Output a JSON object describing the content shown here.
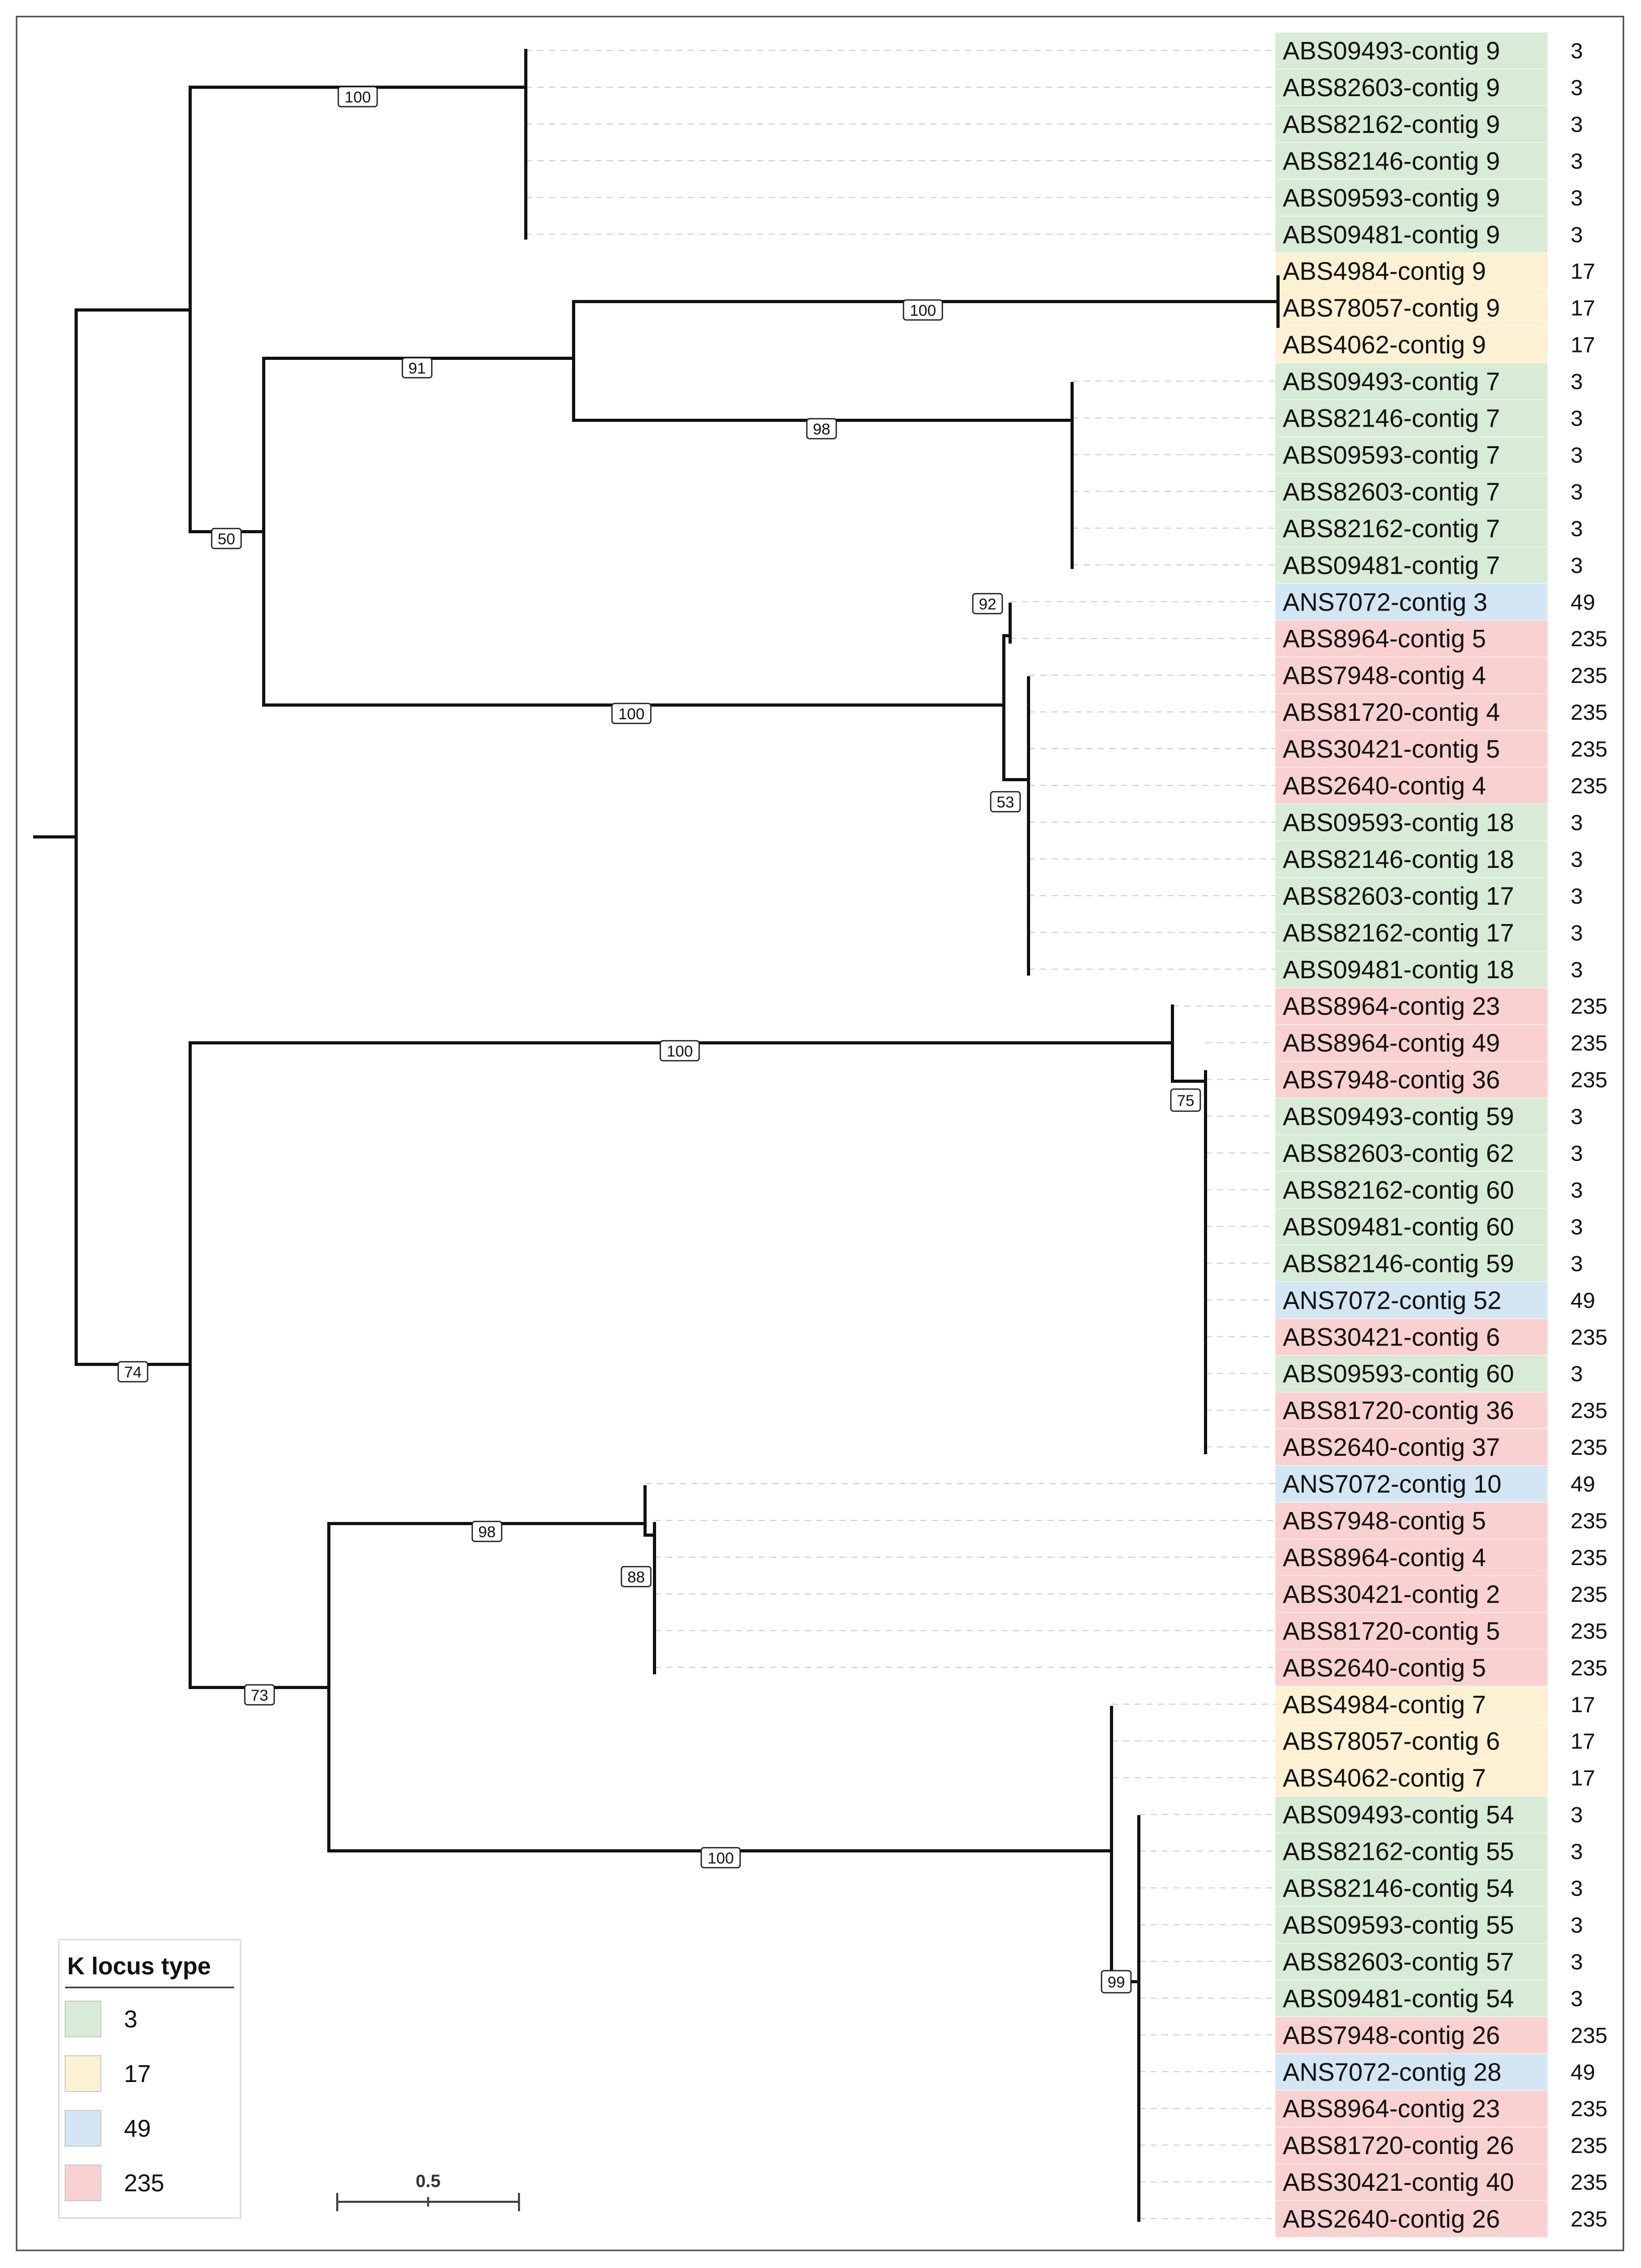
{
  "figure": {
    "title": "",
    "legend": {
      "title": "K locus type",
      "entries": [
        {
          "label": "3",
          "color": "#d7ebd6"
        },
        {
          "label": "17",
          "color": "#fcf1d2"
        },
        {
          "label": "49",
          "color": "#d3e6f3"
        },
        {
          "label": "235",
          "color": "#f9d1d1"
        }
      ]
    },
    "scale_bar": {
      "label": "0.5",
      "value": 0.5
    }
  },
  "colors": {
    "3": "#d7ebd6",
    "17": "#fcf1d2",
    "49": "#d3e6f3",
    "235": "#f9d1d1"
  },
  "tips": [
    {
      "label": "ABS09493-contig 9",
      "ktype": "3"
    },
    {
      "label": "ABS82603-contig 9",
      "ktype": "3"
    },
    {
      "label": "ABS82162-contig 9",
      "ktype": "3"
    },
    {
      "label": "ABS82146-contig 9",
      "ktype": "3"
    },
    {
      "label": "ABS09593-contig 9",
      "ktype": "3"
    },
    {
      "label": "ABS09481-contig 9",
      "ktype": "3"
    },
    {
      "label": "ABS4984-contig 9",
      "ktype": "17"
    },
    {
      "label": "ABS78057-contig 9",
      "ktype": "17"
    },
    {
      "label": "ABS4062-contig 9",
      "ktype": "17"
    },
    {
      "label": "ABS09493-contig 7",
      "ktype": "3"
    },
    {
      "label": "ABS82146-contig 7",
      "ktype": "3"
    },
    {
      "label": "ABS09593-contig 7",
      "ktype": "3"
    },
    {
      "label": "ABS82603-contig 7",
      "ktype": "3"
    },
    {
      "label": "ABS82162-contig 7",
      "ktype": "3"
    },
    {
      "label": "ABS09481-contig 7",
      "ktype": "3"
    },
    {
      "label": "ANS7072-contig 3",
      "ktype": "49"
    },
    {
      "label": "ABS8964-contig 5",
      "ktype": "235"
    },
    {
      "label": "ABS7948-contig 4",
      "ktype": "235"
    },
    {
      "label": "ABS81720-contig 4",
      "ktype": "235"
    },
    {
      "label": "ABS30421-contig 5",
      "ktype": "235"
    },
    {
      "label": "ABS2640-contig 4",
      "ktype": "235"
    },
    {
      "label": "ABS09593-contig 18",
      "ktype": "3"
    },
    {
      "label": "ABS82146-contig 18",
      "ktype": "3"
    },
    {
      "label": "ABS82603-contig 17",
      "ktype": "3"
    },
    {
      "label": "ABS82162-contig 17",
      "ktype": "3"
    },
    {
      "label": "ABS09481-contig 18",
      "ktype": "3"
    },
    {
      "label": "ABS8964-contig 23",
      "ktype": "235"
    },
    {
      "label": "ABS8964-contig 49",
      "ktype": "235"
    },
    {
      "label": "ABS7948-contig 36",
      "ktype": "235"
    },
    {
      "label": "ABS09493-contig 59",
      "ktype": "3"
    },
    {
      "label": "ABS82603-contig 62",
      "ktype": "3"
    },
    {
      "label": "ABS82162-contig 60",
      "ktype": "3"
    },
    {
      "label": "ABS09481-contig 60",
      "ktype": "3"
    },
    {
      "label": "ABS82146-contig 59",
      "ktype": "3"
    },
    {
      "label": "ANS7072-contig 52",
      "ktype": "49"
    },
    {
      "label": "ABS30421-contig 6",
      "ktype": "235"
    },
    {
      "label": "ABS09593-contig 60",
      "ktype": "3"
    },
    {
      "label": "ABS81720-contig 36",
      "ktype": "235"
    },
    {
      "label": "ABS2640-contig 37",
      "ktype": "235"
    },
    {
      "label": "ANS7072-contig 10",
      "ktype": "49"
    },
    {
      "label": "ABS7948-contig 5",
      "ktype": "235"
    },
    {
      "label": "ABS8964-contig 4",
      "ktype": "235"
    },
    {
      "label": "ABS30421-contig 2",
      "ktype": "235"
    },
    {
      "label": "ABS81720-contig 5",
      "ktype": "235"
    },
    {
      "label": "ABS2640-contig 5",
      "ktype": "235"
    },
    {
      "label": "ABS4984-contig 7",
      "ktype": "17"
    },
    {
      "label": "ABS78057-contig 6",
      "ktype": "17"
    },
    {
      "label": "ABS4062-contig 7",
      "ktype": "17"
    },
    {
      "label": "ABS09493-contig 54",
      "ktype": "3"
    },
    {
      "label": "ABS82162-contig 55",
      "ktype": "3"
    },
    {
      "label": "ABS82146-contig 54",
      "ktype": "3"
    },
    {
      "label": "ABS09593-contig 55",
      "ktype": "3"
    },
    {
      "label": "ABS82603-contig 57",
      "ktype": "3"
    },
    {
      "label": "ABS09481-contig 54",
      "ktype": "3"
    },
    {
      "label": "ABS7948-contig 26",
      "ktype": "235"
    },
    {
      "label": "ANS7072-contig 28",
      "ktype": "49"
    },
    {
      "label": "ABS8964-contig 23",
      "ktype": "235"
    },
    {
      "label": "ABS81720-contig 26",
      "ktype": "235"
    },
    {
      "label": "ABS30421-contig 40",
      "ktype": "235"
    },
    {
      "label": "ABS2640-contig 26",
      "ktype": "235"
    }
  ],
  "bootstrap": {
    "b100a": "100",
    "b50": "50",
    "b91": "91",
    "b100b": "100",
    "b98a": "98",
    "b92": "92",
    "b100c": "100",
    "b53": "53",
    "b74": "74",
    "b100d": "100",
    "b75": "75",
    "b73": "73",
    "b98b": "98",
    "b88": "88",
    "b100e": "100",
    "b99": "99"
  }
}
